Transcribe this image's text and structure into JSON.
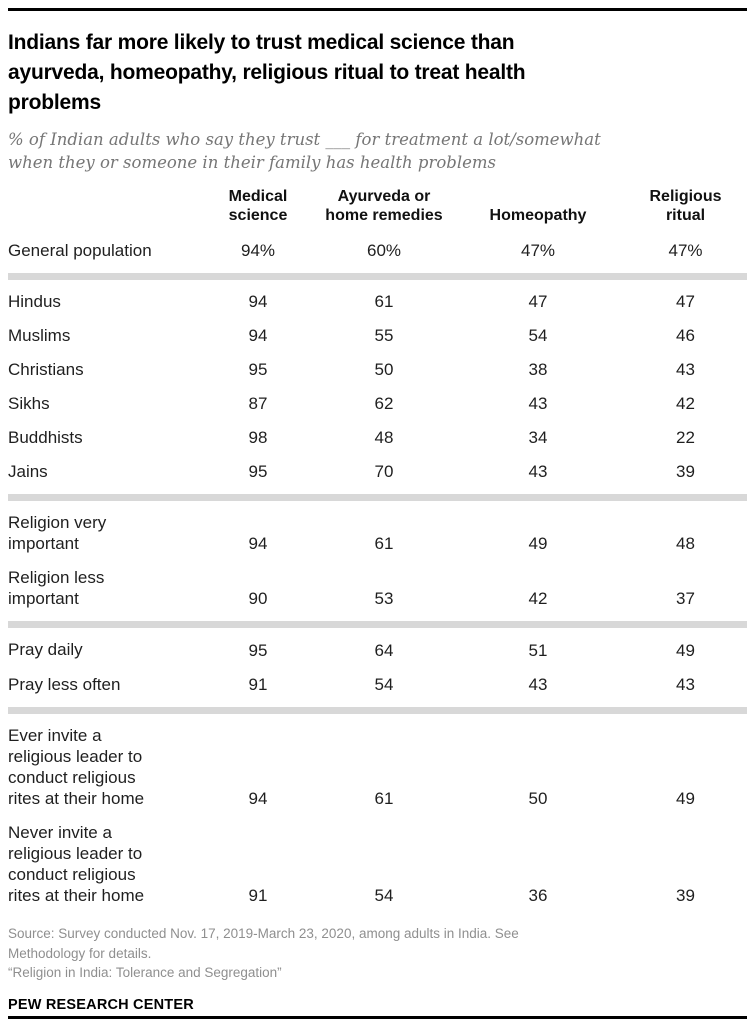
{
  "title": "Indians far more likely to trust medical science than ayurveda, homeopathy, religious ritual to treat health problems",
  "title_lines": [
    "Indians far more likely to trust medical science than",
    "ayurveda, homeopathy, religious ritual to treat health",
    "problems"
  ],
  "subtitle_lines": [
    "% of Indian adults who say they trust ___ for treatment a lot/somewhat",
    "when they or someone in their family has health problems"
  ],
  "colors": {
    "separator_bar": "#d8d8d8",
    "subtitle_text": "#767676",
    "source_text": "#8f8f8f",
    "rule": "#000000",
    "body_text": "#1f1f1f"
  },
  "table": {
    "col_headers": [
      {
        "line1": "Medical",
        "line2": "science"
      },
      {
        "line1": "Ayurveda or",
        "line2": "home remedies"
      },
      {
        "line1": "Homeopathy",
        "line2": ""
      },
      {
        "line1": "Religious",
        "line2": "ritual"
      }
    ],
    "groups": [
      {
        "rows": [
          {
            "label_lines": [
              "General population"
            ],
            "values": [
              "94%",
              "60%",
              "47%",
              "47%"
            ]
          }
        ]
      },
      {
        "rows": [
          {
            "label_lines": [
              "Hindus"
            ],
            "values": [
              "94",
              "61",
              "47",
              "47"
            ]
          },
          {
            "label_lines": [
              "Muslims"
            ],
            "values": [
              "94",
              "55",
              "54",
              "46"
            ]
          },
          {
            "label_lines": [
              "Christians"
            ],
            "values": [
              "95",
              "50",
              "38",
              "43"
            ]
          },
          {
            "label_lines": [
              "Sikhs"
            ],
            "values": [
              "87",
              "62",
              "43",
              "42"
            ]
          },
          {
            "label_lines": [
              "Buddhists"
            ],
            "values": [
              "98",
              "48",
              "34",
              "22"
            ]
          },
          {
            "label_lines": [
              "Jains"
            ],
            "values": [
              "95",
              "70",
              "43",
              "39"
            ]
          }
        ]
      },
      {
        "rows": [
          {
            "label_lines": [
              "Religion very",
              "important"
            ],
            "values": [
              "94",
              "61",
              "49",
              "48"
            ]
          },
          {
            "label_lines": [
              "Religion less",
              "important"
            ],
            "values": [
              "90",
              "53",
              "42",
              "37"
            ]
          }
        ]
      },
      {
        "rows": [
          {
            "label_lines": [
              "Pray daily"
            ],
            "values": [
              "95",
              "64",
              "51",
              "49"
            ]
          },
          {
            "label_lines": [
              "Pray less often"
            ],
            "values": [
              "91",
              "54",
              "43",
              "43"
            ]
          }
        ]
      },
      {
        "rows": [
          {
            "label_lines": [
              "Ever invite a",
              "religious leader to",
              "conduct religious",
              "rites at their home"
            ],
            "values": [
              "94",
              "61",
              "50",
              "49"
            ]
          },
          {
            "label_lines": [
              "Never invite a",
              "religious leader to",
              "conduct religious",
              "rites at their home"
            ],
            "values": [
              "91",
              "54",
              "36",
              "39"
            ]
          }
        ]
      }
    ]
  },
  "source_lines": [
    "Source: Survey conducted Nov. 17, 2019-March 23, 2020, among adults in India. See",
    "Methodology for details.",
    "“Religion in India: Tolerance and Segregation”"
  ],
  "branding": "PEW RESEARCH CENTER",
  "chart_data": {
    "type": "table",
    "title": "Indians far more likely to trust medical science than ayurveda, homeopathy, religious ritual to treat health problems",
    "subtitle": "% of Indian adults who say they trust ___ for treatment a lot/somewhat when they or someone in their family has health problems",
    "columns": [
      "Medical science",
      "Ayurveda or home remedies",
      "Homeopathy",
      "Religious ritual"
    ],
    "unit": "% trusting a lot/somewhat",
    "rows": [
      {
        "label": "General population",
        "values": [
          94,
          60,
          47,
          47
        ]
      },
      {
        "label": "Hindus",
        "values": [
          94,
          61,
          47,
          47
        ]
      },
      {
        "label": "Muslims",
        "values": [
          94,
          55,
          54,
          46
        ]
      },
      {
        "label": "Christians",
        "values": [
          95,
          50,
          38,
          43
        ]
      },
      {
        "label": "Sikhs",
        "values": [
          87,
          62,
          43,
          42
        ]
      },
      {
        "label": "Buddhists",
        "values": [
          98,
          48,
          34,
          22
        ]
      },
      {
        "label": "Jains",
        "values": [
          95,
          70,
          43,
          39
        ]
      },
      {
        "label": "Religion very important",
        "values": [
          94,
          61,
          49,
          48
        ]
      },
      {
        "label": "Religion less important",
        "values": [
          90,
          53,
          42,
          37
        ]
      },
      {
        "label": "Pray daily",
        "values": [
          95,
          64,
          51,
          49
        ]
      },
      {
        "label": "Pray less often",
        "values": [
          91,
          54,
          43,
          43
        ]
      },
      {
        "label": "Ever invite a religious leader to conduct religious rites at their home",
        "values": [
          94,
          61,
          50,
          49
        ]
      },
      {
        "label": "Never invite a religious leader to conduct religious rites at their home",
        "values": [
          91,
          54,
          36,
          39
        ]
      }
    ],
    "source": "Source: Survey conducted Nov. 17, 2019-March 23, 2020, among adults in India. See Methodology for details.",
    "report": "“Religion in India: Tolerance and Segregation”",
    "branding": "PEW RESEARCH CENTER"
  }
}
